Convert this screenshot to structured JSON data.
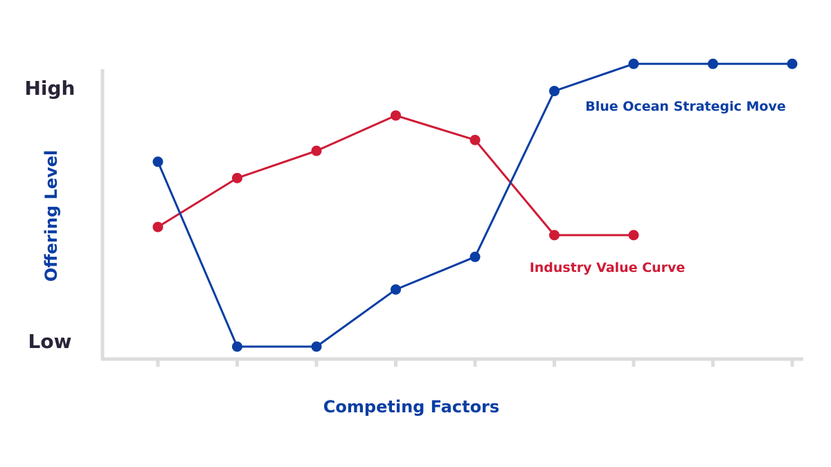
{
  "chart_data": {
    "type": "line",
    "xlabel": "Competing Factors",
    "ylabel": "Offering Level",
    "y_tick_labels": {
      "high": "High",
      "low": "Low"
    },
    "ylim": [
      0,
      100
    ],
    "x_count": 9,
    "grid": false,
    "series": [
      {
        "name": "Industry Value Curve",
        "color": "#cf1b36",
        "x": [
          0,
          1,
          2,
          3,
          4,
          5,
          6
        ],
        "values": [
          44,
          62,
          72,
          85,
          76,
          41,
          41
        ]
      },
      {
        "name": "Blue Ocean Strategic Move",
        "color": "#0a3ea4",
        "x": [
          0,
          1,
          2,
          3,
          4,
          5,
          6,
          7,
          8
        ],
        "values": [
          68,
          0,
          0,
          21,
          33,
          94,
          104,
          104,
          104
        ]
      }
    ],
    "colors": {
      "axis": "#dcdcdc",
      "axis_title": "#0a3ea4",
      "tick_label": "#2a2438"
    }
  }
}
